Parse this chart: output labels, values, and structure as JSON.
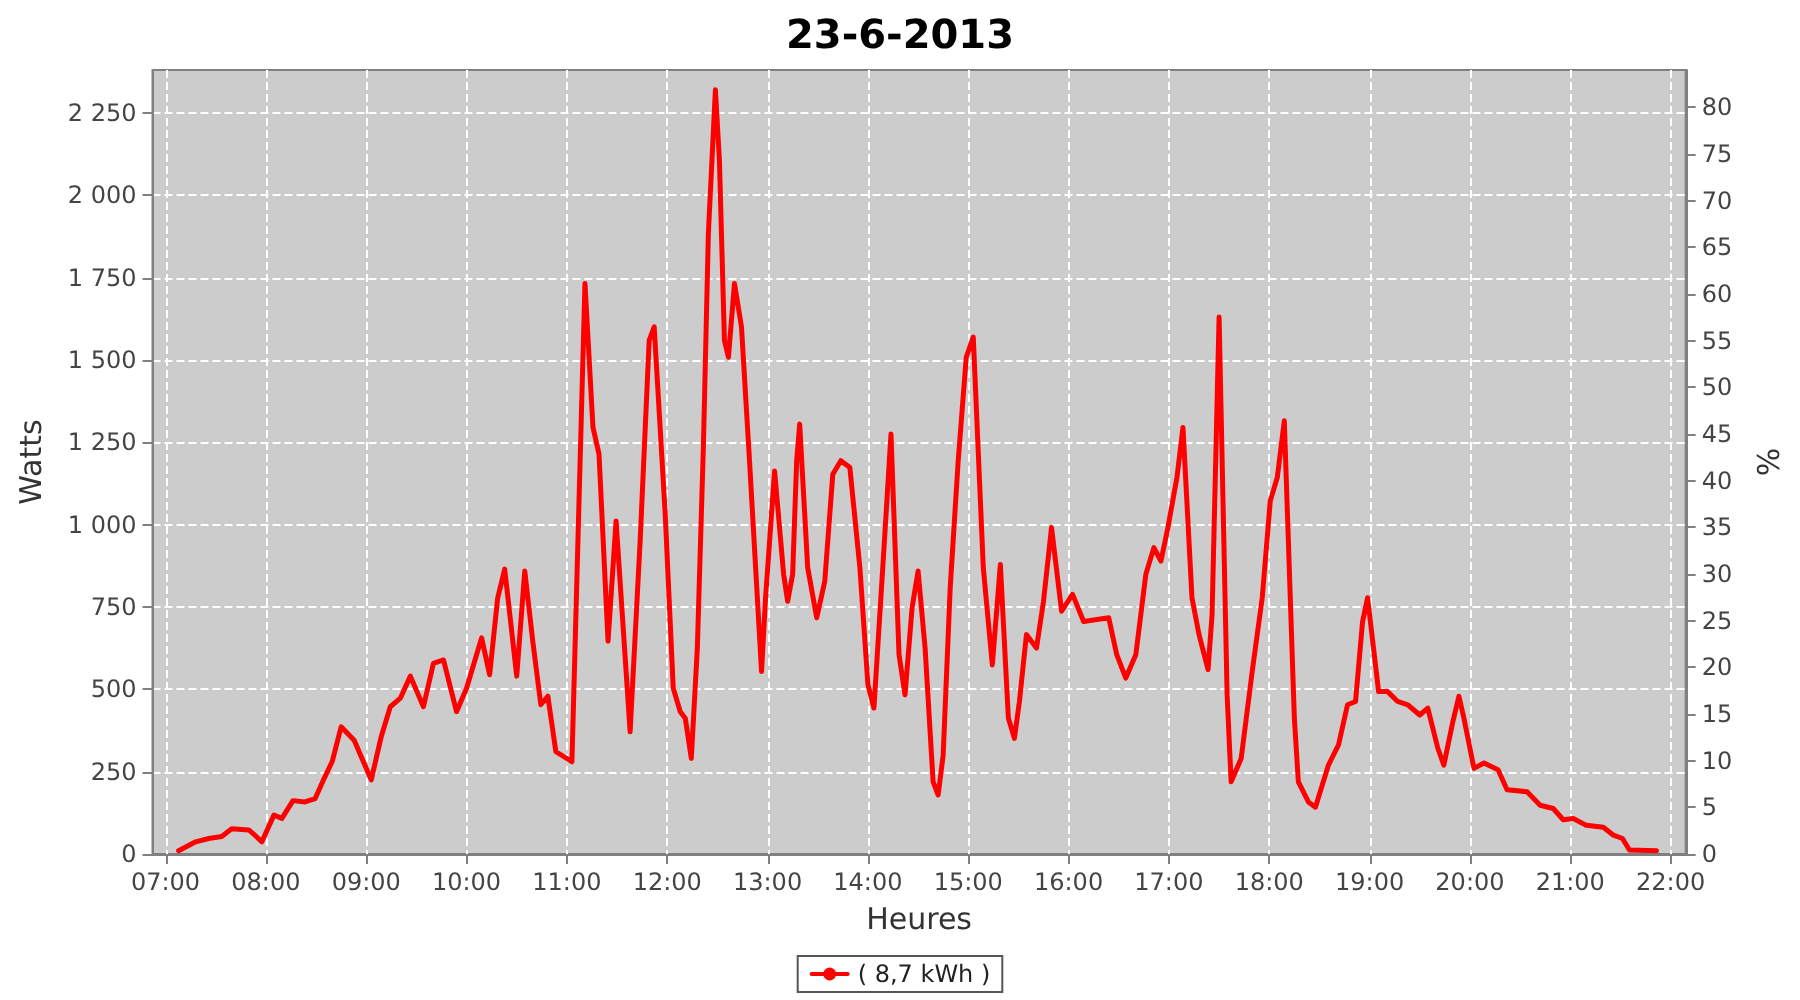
{
  "chart_data": {
    "type": "line",
    "title": "23-6-2013",
    "xlabel": "Heures",
    "ylabel": "Watts",
    "y2label": "%",
    "xlim": [
      6.87,
      22.15
    ],
    "xticks": [
      {
        "value": 7,
        "label": "07:00"
      },
      {
        "value": 8,
        "label": "08:00"
      },
      {
        "value": 9,
        "label": "09:00"
      },
      {
        "value": 10,
        "label": "10:00"
      },
      {
        "value": 11,
        "label": "11:00"
      },
      {
        "value": 12,
        "label": "12:00"
      },
      {
        "value": 13,
        "label": "13:00"
      },
      {
        "value": 14,
        "label": "14:00"
      },
      {
        "value": 15,
        "label": "15:00"
      },
      {
        "value": 16,
        "label": "16:00"
      },
      {
        "value": 17,
        "label": "17:00"
      },
      {
        "value": 18,
        "label": "18:00"
      },
      {
        "value": 19,
        "label": "19:00"
      },
      {
        "value": 20,
        "label": "20:00"
      },
      {
        "value": 21,
        "label": "21:00"
      },
      {
        "value": 22,
        "label": "22:00"
      }
    ],
    "ylim": [
      0,
      2380
    ],
    "yticks": [
      0,
      250,
      500,
      750,
      {
        "value": 1000,
        "label": "1 000"
      },
      {
        "value": 1250,
        "label": "1 250"
      },
      {
        "value": 1500,
        "label": "1 500"
      },
      {
        "value": 1750,
        "label": "1 750"
      },
      {
        "value": 2000,
        "label": "2 000"
      },
      {
        "value": 2250,
        "label": "2 250"
      }
    ],
    "y2lim": [
      0,
      84
    ],
    "y2ticks": [
      0,
      5,
      10,
      15,
      20,
      25,
      30,
      35,
      40,
      45,
      50,
      55,
      60,
      65,
      70,
      75,
      80
    ],
    "grid": true,
    "legend": "bottom",
    "marker": "none",
    "line_style": "solid",
    "series": [
      {
        "name": "( 8,7 kWh )",
        "color": "#ff0000",
        "x": [
          7.13,
          7.3,
          7.43,
          7.56,
          7.66,
          7.83,
          7.89,
          7.96,
          8.08,
          8.16,
          8.27,
          8.39,
          8.49,
          8.58,
          8.66,
          8.75,
          8.88,
          9.05,
          9.15,
          9.24,
          9.34,
          9.44,
          9.57,
          9.67,
          9.77,
          9.9,
          10.0,
          10.09,
          10.15,
          10.23,
          10.31,
          10.38,
          10.5,
          10.58,
          10.66,
          10.74,
          10.81,
          10.89,
          11.05,
          11.18,
          11.26,
          11.32,
          11.41,
          11.49,
          11.63,
          11.73,
          11.82,
          11.87,
          11.98,
          12.06,
          12.13,
          12.18,
          12.24,
          12.3,
          12.36,
          12.41,
          12.48,
          12.52,
          12.57,
          12.61,
          12.67,
          12.74,
          12.82,
          12.94,
          12.98,
          13.07,
          13.16,
          13.2,
          13.25,
          13.29,
          13.32,
          13.4,
          13.49,
          13.57,
          13.65,
          13.73,
          13.82,
          13.92,
          14.0,
          14.06,
          14.15,
          14.23,
          14.31,
          14.37,
          14.44,
          14.5,
          14.57,
          14.65,
          14.7,
          14.75,
          14.82,
          14.9,
          14.98,
          15.05,
          15.15,
          15.24,
          15.32,
          15.4,
          15.46,
          15.51,
          15.58,
          15.68,
          15.75,
          15.83,
          15.93,
          16.04,
          16.15,
          16.4,
          16.48,
          16.57,
          16.67,
          16.77,
          16.85,
          16.92,
          16.99,
          17.08,
          17.14,
          17.23,
          17.3,
          17.39,
          17.43,
          17.5,
          17.58,
          17.62,
          17.72,
          17.83,
          17.93,
          18.01,
          18.08,
          18.15,
          18.25,
          18.29,
          18.39,
          18.46,
          18.59,
          18.69,
          18.78,
          18.86,
          18.93,
          18.98,
          19.09,
          19.18,
          19.28,
          19.38,
          19.5,
          19.58,
          19.68,
          19.74,
          19.83,
          19.89,
          19.94,
          20.04,
          20.14,
          20.28,
          20.37,
          20.57,
          20.7,
          20.83,
          20.93,
          21.03,
          21.16,
          21.33,
          21.43,
          21.52,
          21.59,
          21.86
        ],
        "values": [
          10,
          37,
          47,
          53,
          77,
          73,
          57,
          37,
          118,
          108,
          162,
          158,
          168,
          229,
          280,
          386,
          345,
          225,
          357,
          447,
          473,
          540,
          447,
          579,
          589,
          432,
          503,
          595,
          656,
          544,
          777,
          865,
          540,
          859,
          646,
          453,
          479,
          311,
          280,
          1732,
          1295,
          1214,
          646,
          1011,
          371,
          950,
          1559,
          1600,
          1031,
          503,
          432,
          412,
          290,
          625,
          1234,
          1884,
          2320,
          2107,
          1559,
          1508,
          1732,
          1600,
          1194,
          554,
          778,
          1163,
          849,
          767,
          849,
          1194,
          1305,
          869,
          717,
          828,
          1153,
          1194,
          1173,
          869,
          514,
          443,
          879,
          1275,
          605,
          483,
          747,
          859,
          625,
          219,
          179,
          300,
          808,
          1194,
          1508,
          1569,
          869,
          574,
          879,
          412,
          351,
          463,
          666,
          625,
          767,
          991,
          737,
          788,
          706,
          717,
          605,
          534,
          605,
          849,
          930,
          889,
          991,
          1143,
          1295,
          777,
          666,
          560,
          727,
          1630,
          483,
          219,
          290,
          554,
          778,
          1072,
          1143,
          1315,
          412,
          219,
          158,
          142,
          270,
          331,
          453,
          463,
          706,
          778,
          493,
          493,
          463,
          453,
          422,
          443,
          321,
          270,
          402,
          479,
          412,
          260,
          276,
          256,
          195,
          189,
          148,
          138,
          104,
          108,
          87,
          81,
          57,
          47,
          12,
          10
        ]
      }
    ]
  }
}
